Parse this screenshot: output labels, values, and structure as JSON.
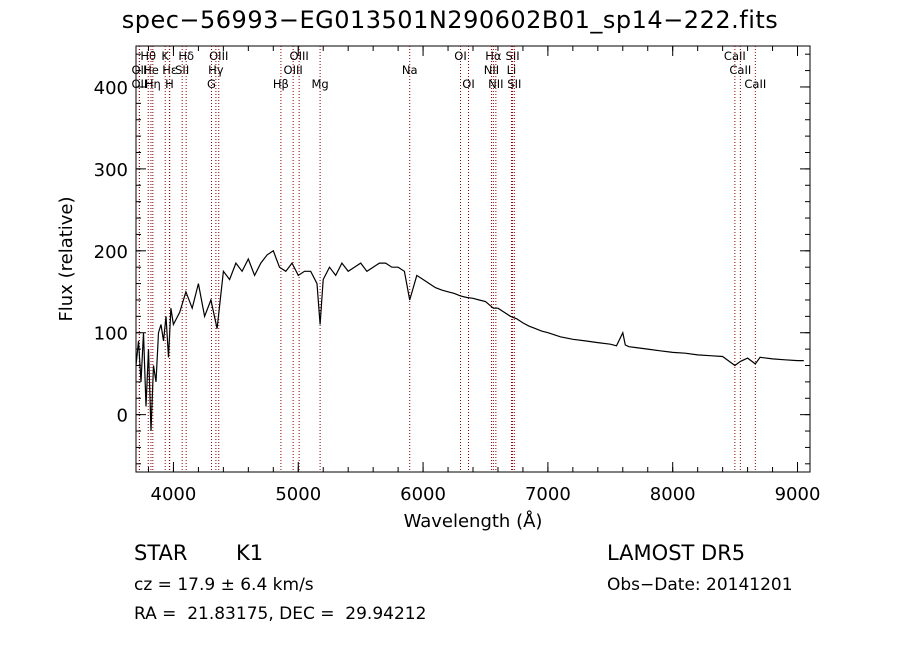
{
  "chart_data": {
    "type": "line",
    "title": "spec−56993−EG013501N290602B01_sp14−222.fits",
    "xlabel": "Wavelength (Å)",
    "ylabel": "Flux (relative)",
    "xlim": [
      3700,
      9100
    ],
    "ylim": [
      -70,
      450
    ],
    "xticks": [
      4000,
      5000,
      6000,
      7000,
      8000,
      9000
    ],
    "yticks": [
      0,
      100,
      200,
      300,
      400
    ],
    "grid": false,
    "line_color": "#000000",
    "marker_color": "#8b0000",
    "spectrum": {
      "x": [
        3700,
        3720,
        3740,
        3760,
        3780,
        3800,
        3820,
        3840,
        3860,
        3880,
        3900,
        3920,
        3940,
        3960,
        3980,
        4000,
        4050,
        4100,
        4150,
        4200,
        4250,
        4300,
        4350,
        4400,
        4450,
        4500,
        4550,
        4600,
        4650,
        4700,
        4750,
        4800,
        4850,
        4900,
        4950,
        5000,
        5050,
        5100,
        5150,
        5175,
        5200,
        5250,
        5300,
        5350,
        5400,
        5450,
        5500,
        5550,
        5600,
        5650,
        5700,
        5750,
        5800,
        5850,
        5893,
        5950,
        6000,
        6050,
        6100,
        6150,
        6200,
        6250,
        6300,
        6350,
        6400,
        6450,
        6500,
        6563,
        6600,
        6650,
        6700,
        6750,
        6800,
        6850,
        6900,
        6950,
        7000,
        7100,
        7200,
        7300,
        7400,
        7500,
        7550,
        7600,
        7620,
        7650,
        7700,
        7800,
        7900,
        8000,
        8100,
        8200,
        8300,
        8400,
        8498,
        8542,
        8600,
        8662,
        8700,
        8800,
        8900,
        9000,
        9050
      ],
      "y": [
        60,
        90,
        40,
        100,
        10,
        80,
        -20,
        60,
        40,
        100,
        110,
        90,
        120,
        70,
        130,
        110,
        125,
        150,
        130,
        160,
        120,
        140,
        105,
        175,
        165,
        185,
        175,
        190,
        170,
        185,
        195,
        200,
        180,
        175,
        185,
        170,
        175,
        175,
        160,
        110,
        165,
        180,
        170,
        185,
        175,
        180,
        185,
        175,
        180,
        185,
        185,
        180,
        180,
        175,
        140,
        170,
        165,
        160,
        155,
        152,
        150,
        148,
        145,
        143,
        142,
        140,
        138,
        130,
        130,
        125,
        120,
        117,
        112,
        108,
        105,
        102,
        100,
        95,
        92,
        90,
        88,
        86,
        84,
        100,
        85,
        83,
        82,
        80,
        78,
        76,
        75,
        73,
        72,
        71,
        60,
        65,
        69,
        62,
        70,
        68,
        67,
        66,
        66
      ]
    },
    "lines": [
      {
        "name": "Hθ",
        "x": 3798,
        "tier": 1
      },
      {
        "name": "OII",
        "x": 3727,
        "tier": 2
      },
      {
        "name": "OII",
        "x": 3727,
        "tier": 3
      },
      {
        "name": "He",
        "x": 3820,
        "tier": 2
      },
      {
        "name": "Hη",
        "x": 3835,
        "tier": 3
      },
      {
        "name": "K",
        "x": 3934,
        "tier": 1
      },
      {
        "name": "Hε",
        "x": 3970,
        "tier": 2
      },
      {
        "name": "H",
        "x": 3968,
        "tier": 3
      },
      {
        "name": "SII",
        "x": 4070,
        "tier": 2
      },
      {
        "name": "Hδ",
        "x": 4102,
        "tier": 1
      },
      {
        "name": "OIII",
        "x": 4363,
        "tier": 1
      },
      {
        "name": "Hγ",
        "x": 4340,
        "tier": 2
      },
      {
        "name": "G",
        "x": 4305,
        "tier": 3
      },
      {
        "name": "Hβ",
        "x": 4861,
        "tier": 3
      },
      {
        "name": "OIII",
        "x": 5007,
        "tier": 1
      },
      {
        "name": "OIII",
        "x": 4959,
        "tier": 2
      },
      {
        "name": "Mg",
        "x": 5175,
        "tier": 3
      },
      {
        "name": "Na",
        "x": 5893,
        "tier": 2
      },
      {
        "name": "OI",
        "x": 6300,
        "tier": 1
      },
      {
        "name": "OI",
        "x": 6364,
        "tier": 3
      },
      {
        "name": "Hα",
        "x": 6563,
        "tier": 1
      },
      {
        "name": "NII",
        "x": 6548,
        "tier": 2
      },
      {
        "name": "NII",
        "x": 6583,
        "tier": 3
      },
      {
        "name": "SII",
        "x": 6717,
        "tier": 1
      },
      {
        "name": "Li",
        "x": 6708,
        "tier": 2
      },
      {
        "name": "SII",
        "x": 6731,
        "tier": 3
      },
      {
        "name": "CaII",
        "x": 8498,
        "tier": 1
      },
      {
        "name": "CaII",
        "x": 8542,
        "tier": 2
      },
      {
        "name": "CaII",
        "x": 8662,
        "tier": 3
      }
    ]
  },
  "info": {
    "object_class": "STAR",
    "subclass": "K1",
    "survey": "LAMOST DR5",
    "redshift": "cz = 17.9 ± 6.4 km/s",
    "obs_date": "Obs−Date: 20141201",
    "coords": "RA =  21.83175, DEC =  29.94212"
  }
}
